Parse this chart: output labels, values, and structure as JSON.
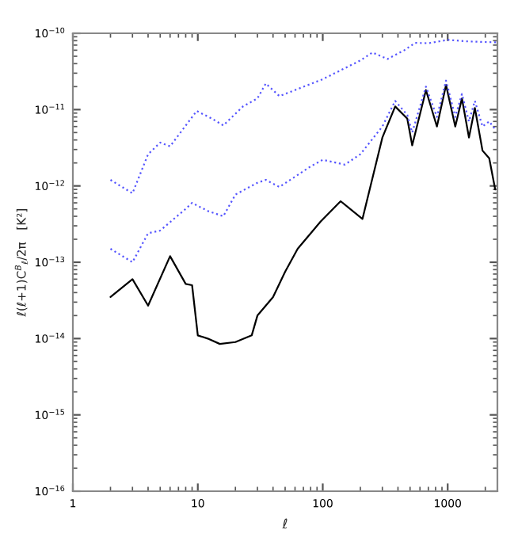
{
  "chart_data": {
    "type": "line",
    "xlabel": "ℓ",
    "ylabel": "ℓ(ℓ+1)C$^{B}$$_{ℓ}$/2π   [K²]",
    "log": "xy",
    "grid": false,
    "xlim": [
      1,
      2500
    ],
    "ylim": [
      1e-16,
      1e-10
    ],
    "xticks": [
      1,
      10,
      100,
      1000
    ],
    "yticks": [
      {
        "value": 1e-16,
        "label": "10$^{−16}$"
      },
      {
        "value": 1e-15,
        "label": "10$^{−15}$"
      },
      {
        "value": 1e-14,
        "label": "10$^{−14}$"
      },
      {
        "value": 1e-13,
        "label": "10$^{−13}$"
      },
      {
        "value": 1e-12,
        "label": "10$^{−12}$"
      },
      {
        "value": 1e-11,
        "label": "10$^{−11}$"
      },
      {
        "value": 1e-10,
        "label": "10$^{−10}$"
      }
    ],
    "series": [
      {
        "color": "#000000",
        "line_style": "solid",
        "x": [
          2,
          3,
          4,
          6,
          8,
          9,
          10,
          12,
          15,
          20,
          27,
          30,
          40,
          50,
          63,
          96,
          139,
          208,
          300,
          380,
          475,
          520,
          670,
          820,
          970,
          1150,
          1300,
          1480,
          1650,
          1900,
          2150,
          2400
        ],
        "values": [
          3.5e-14,
          6e-14,
          2.7e-14,
          1.2e-13,
          5.2e-14,
          5e-14,
          1.1e-14,
          1e-14,
          8.5e-15,
          9e-15,
          1.1e-14,
          2e-14,
          3.5e-14,
          7.5e-14,
          1.5e-13,
          3.4e-13,
          6.3e-13,
          3.7e-13,
          4.3e-12,
          1.1e-11,
          7.6e-12,
          3.4e-12,
          1.8e-11,
          6e-12,
          2.1e-11,
          6e-12,
          1.4e-11,
          4.3e-12,
          1.05e-11,
          2.9e-12,
          2.3e-12,
          9e-13
        ]
      },
      {
        "color": "#5555ff",
        "line_style": "dotted",
        "x": [
          2,
          3,
          4,
          5,
          6,
          9.8,
          13,
          16,
          23,
          30,
          35,
          45,
          100,
          200,
          250,
          330,
          450,
          550,
          700,
          1000,
          1500,
          2500
        ],
        "values": [
          1.2e-12,
          8e-13,
          2.6e-12,
          3.7e-12,
          3.3e-12,
          9.6e-12,
          7.6e-12,
          6.2e-12,
          1.1e-11,
          1.4e-11,
          2.2e-11,
          1.5e-11,
          2.5e-11,
          4.4e-11,
          5.6e-11,
          4.6e-11,
          6e-11,
          7.5e-11,
          7.4e-11,
          8.2e-11,
          7.8e-11,
          7.6e-11
        ]
      },
      {
        "color": "#5555ff",
        "line_style": "dotted",
        "x": [
          2,
          3,
          4,
          5,
          8,
          9,
          12,
          16,
          20,
          30,
          35,
          45,
          80,
          100,
          150,
          200,
          300,
          380,
          475,
          520,
          670,
          820,
          970,
          1150,
          1300,
          1480,
          1650,
          1900,
          2150,
          2400
        ],
        "values": [
          1.5e-13,
          1e-13,
          2.4e-13,
          2.6e-13,
          5e-13,
          6e-13,
          4.7e-13,
          4e-13,
          7.7e-13,
          1.1e-12,
          1.2e-12,
          9.7e-13,
          1.8e-12,
          2.2e-12,
          1.9e-12,
          2.6e-12,
          6e-12,
          1.3e-11,
          8.5e-12,
          5e-12,
          2e-11,
          8e-12,
          2.4e-11,
          8e-12,
          1.6e-11,
          7e-12,
          1.3e-11,
          6e-12,
          7e-12,
          5.5e-12
        ]
      }
    ]
  }
}
